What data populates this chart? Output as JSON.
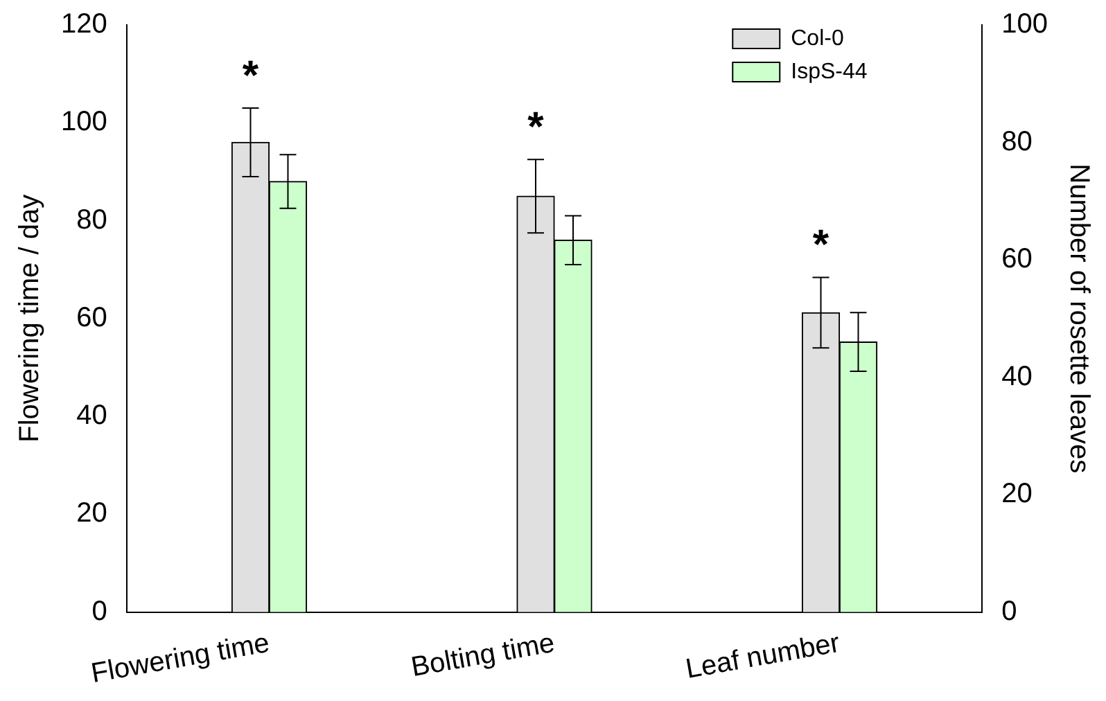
{
  "chart_data": {
    "type": "bar",
    "xlabel": null,
    "ylabel": "Flowering time / day",
    "y2label": "Number of rosette leaves",
    "categories": [
      "Flowering time",
      "Bolting time",
      "Leaf number"
    ],
    "series": [
      {
        "name": "Col-0",
        "color": "#e0e0e0",
        "values": [
          96,
          85,
          null
        ],
        "errors": [
          7,
          7.5,
          null
        ]
      },
      {
        "name": "IspS-44",
        "color": "#ccffcc",
        "values": [
          88,
          76,
          null
        ],
        "errors": [
          5.5,
          5,
          null
        ]
      },
      {
        "color": "#e0e0e0",
        "values": [
          null,
          null,
          51
        ],
        "errors": [
          null,
          null,
          6
        ],
        "axis": "y2"
      },
      {
        "color": "#ccffcc",
        "values": [
          null,
          null,
          46
        ],
        "errors": [
          null,
          null,
          5
        ],
        "axis": "y2"
      }
    ],
    "ylim": [
      0,
      120
    ],
    "yticks": [
      0,
      20,
      40,
      60,
      80,
      100,
      120
    ],
    "y2lim": [
      0,
      100
    ],
    "y2ticks": [
      0,
      20,
      40,
      60,
      80,
      100
    ],
    "legend": "top right",
    "grid": false,
    "annotations": [
      "*",
      "*",
      "*"
    ]
  }
}
